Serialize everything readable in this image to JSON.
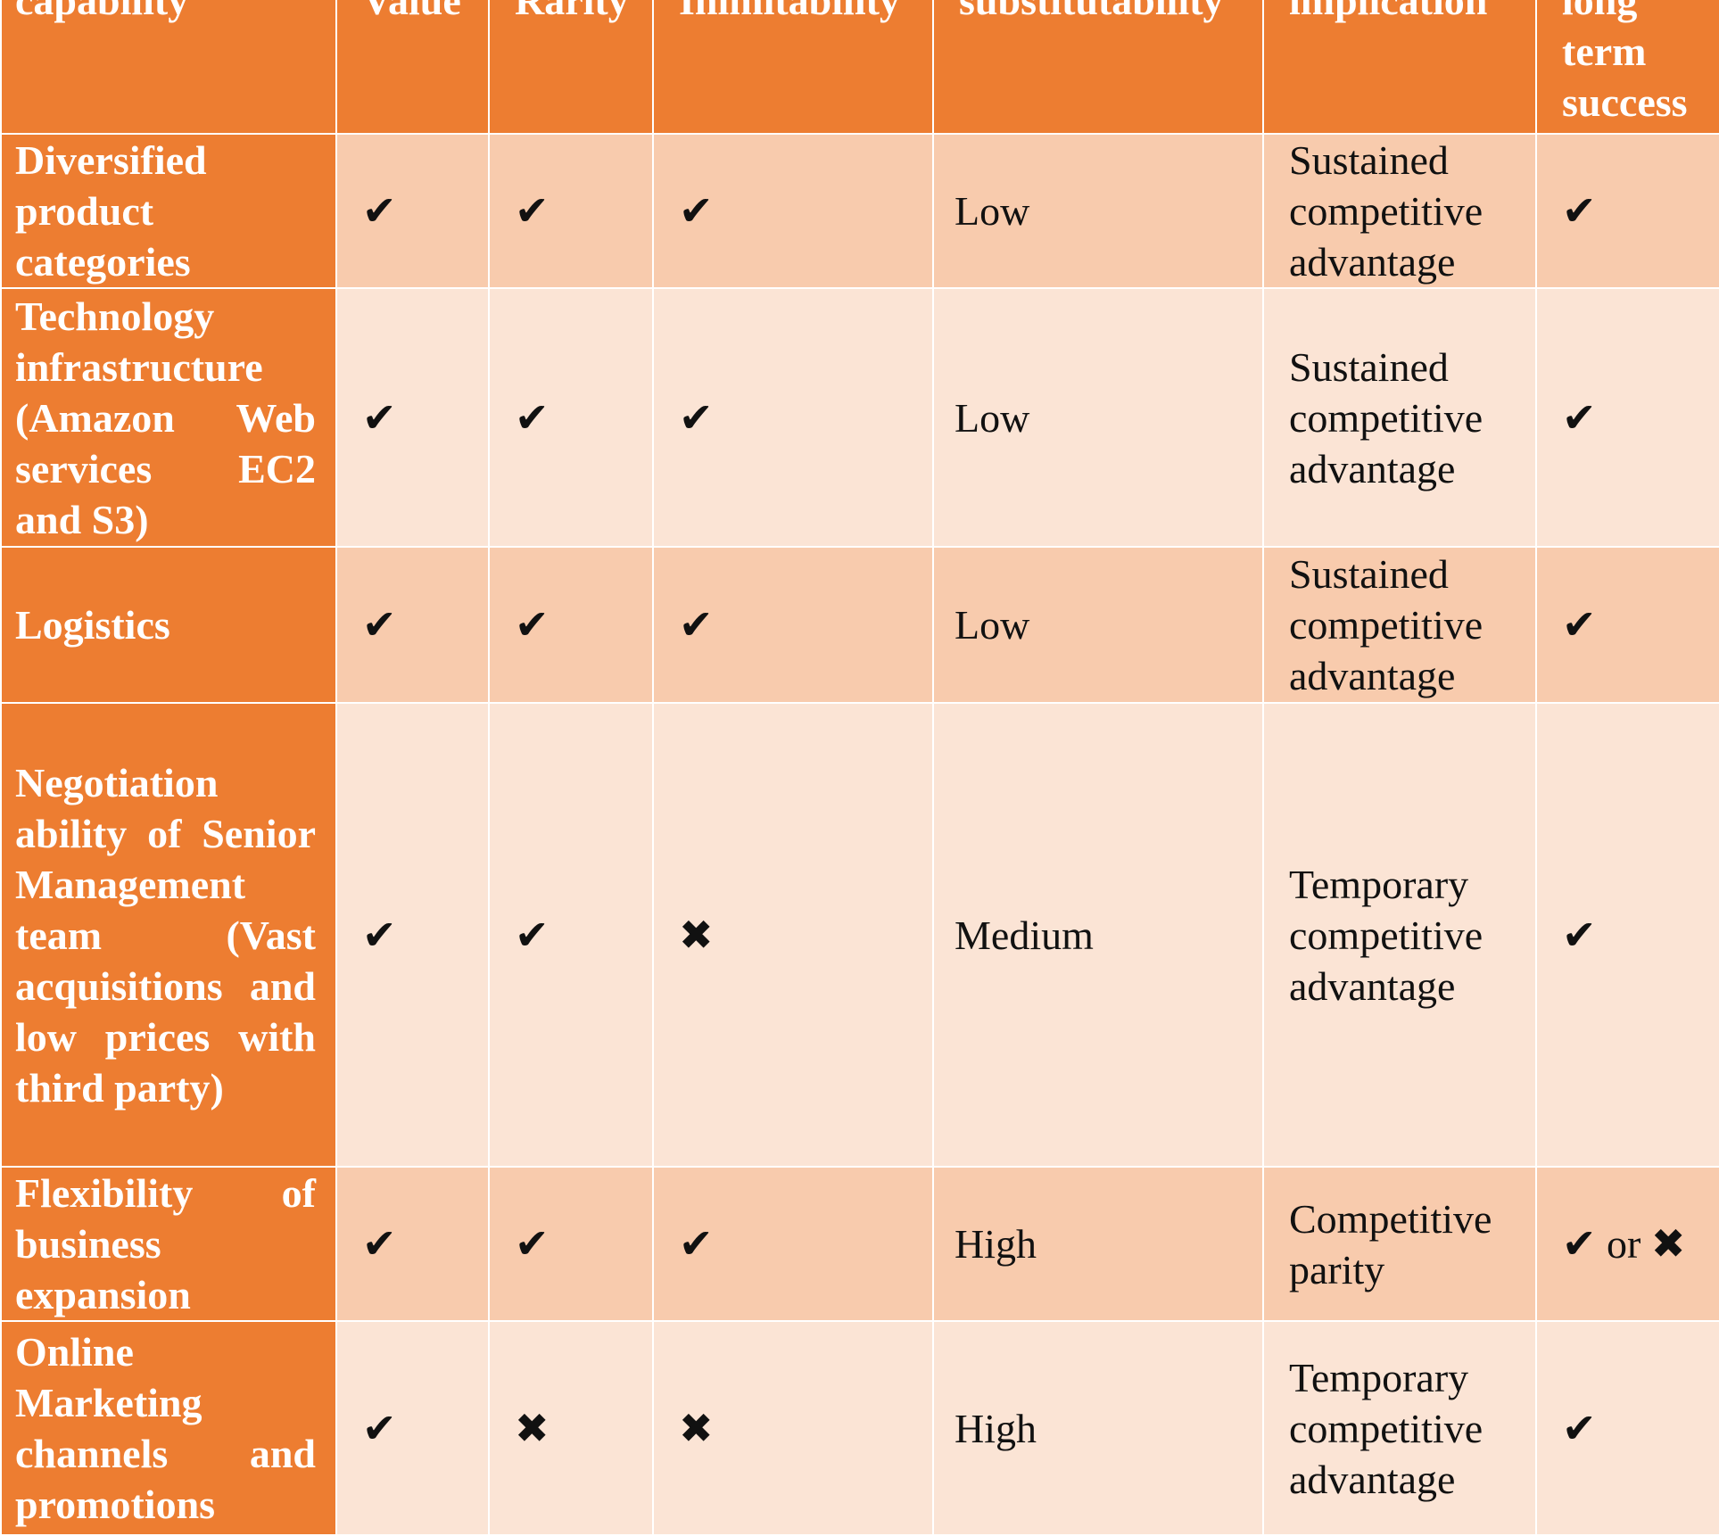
{
  "table": {
    "header": [
      "capability",
      "Value",
      "Rarity",
      "Inimitability",
      "substitutability",
      "implication",
      "long term success"
    ],
    "rows": [
      [
        "Diversified product categories",
        "✔",
        "✔",
        "✔",
        "Low",
        "Sustained competitive advantage",
        "✔"
      ],
      [
        "Technology infrastructure (Amazon Web services EC2 and S3)",
        "✔",
        "✔",
        "✔",
        "Low",
        "Sustained competitive advantage",
        "✔"
      ],
      [
        "Logistics",
        "✔",
        "✔",
        "✔",
        "Low",
        "Sustained competitive advantage",
        "✔"
      ],
      [
        "Negotiation ability of Senior Management team (Vast acquisitions and low prices with third party)",
        "✔",
        "✔",
        "✖",
        "Medium",
        "Temporary competitive advantage",
        "✔"
      ],
      [
        "Flexibility of business expansion",
        "✔",
        "✔",
        "✔",
        "High",
        "Competitive parity",
        "✔ or ✖"
      ],
      [
        "Online Marketing channels and promotions",
        "✔",
        "✖",
        "✖",
        "High",
        "Temporary competitive advantage",
        "✔"
      ]
    ]
  }
}
